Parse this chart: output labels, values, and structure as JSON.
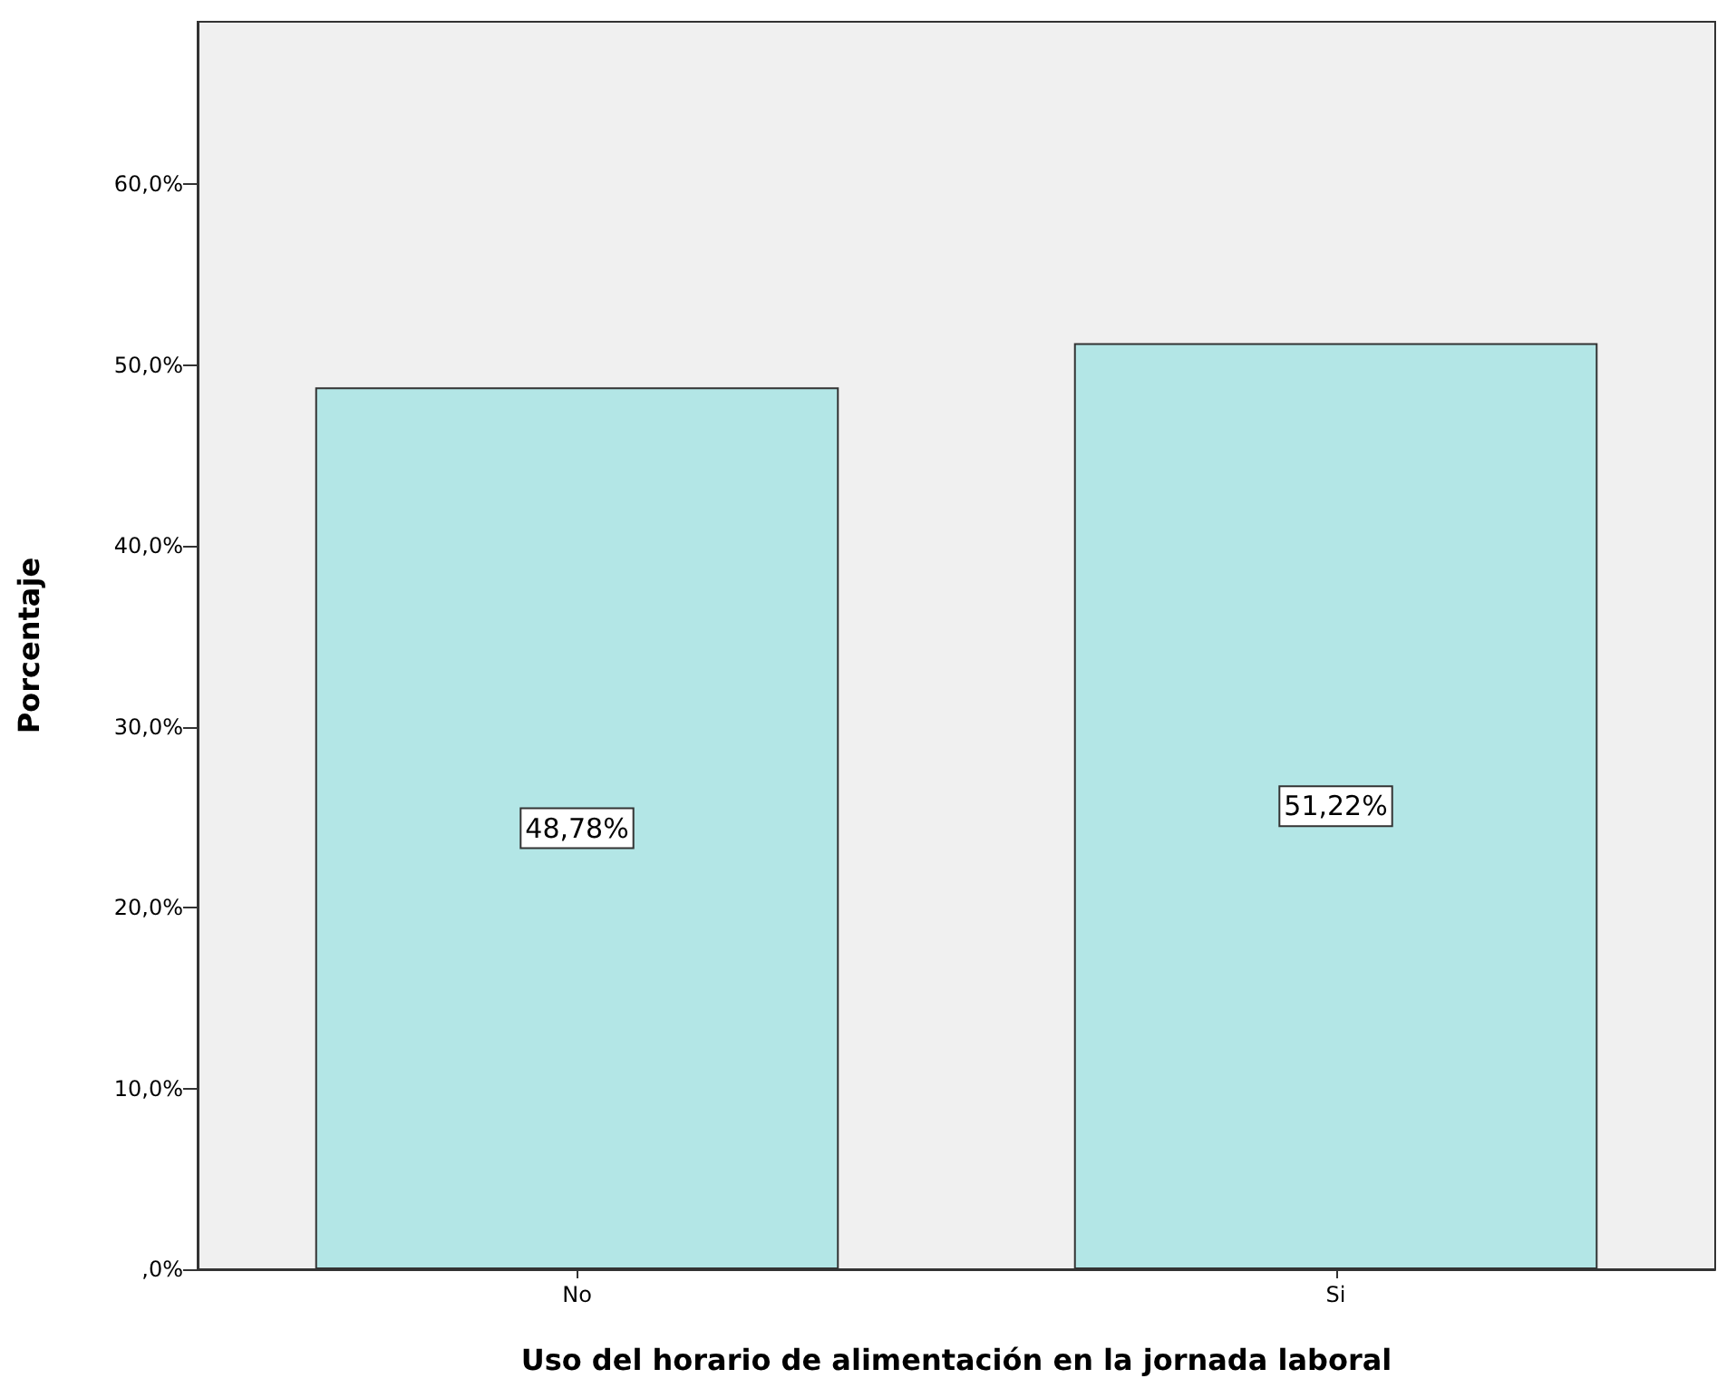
{
  "chart_data": {
    "type": "bar",
    "xlabel": "Uso del horario de alimentación en la jornada laboral",
    "ylabel": "Porcentaje",
    "categories": [
      "No",
      "Si"
    ],
    "values": [
      48.78,
      51.22
    ],
    "value_labels": [
      "48,78%",
      "51,22%"
    ],
    "color": "#b3e6e6",
    "ylim": [
      0,
      69
    ],
    "yticks": [
      {
        "value": 0,
        "label": ",0%"
      },
      {
        "value": 10,
        "label": "10,0%"
      },
      {
        "value": 20,
        "label": "20,0%"
      },
      {
        "value": 30,
        "label": "30,0%"
      },
      {
        "value": 40,
        "label": "40,0%"
      },
      {
        "value": 50,
        "label": "50,0%"
      },
      {
        "value": 60,
        "label": "60,0%"
      }
    ],
    "grid": false
  }
}
